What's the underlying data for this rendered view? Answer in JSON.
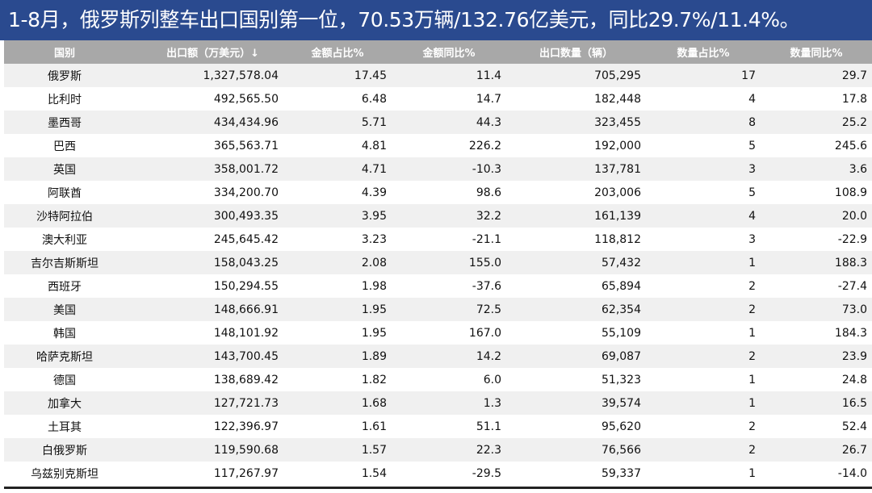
{
  "banner": {
    "title": "1-8月，俄罗斯列整车出口国别第一位，70.53万辆/132.76亿美元，同比29.7%/11.4%。",
    "color": "#2a4a8f"
  },
  "table": {
    "header_color": "#a8a8a8",
    "columns": [
      "国别",
      "出口额（万美元）↓",
      "金额占比%",
      "金额同比%",
      "出口数量（辆）",
      "数量占比%",
      "数量同比%"
    ],
    "rows": [
      [
        "俄罗斯",
        "1,327,578.04",
        "17.45",
        "11.4",
        "705,295",
        "17",
        "29.7"
      ],
      [
        "比利时",
        "492,565.50",
        "6.48",
        "14.7",
        "182,448",
        "4",
        "17.8"
      ],
      [
        "墨西哥",
        "434,434.96",
        "5.71",
        "44.3",
        "323,455",
        "8",
        "25.2"
      ],
      [
        "巴西",
        "365,563.71",
        "4.81",
        "226.2",
        "192,000",
        "5",
        "245.6"
      ],
      [
        "英国",
        "358,001.72",
        "4.71",
        "-10.3",
        "137,781",
        "3",
        "3.6"
      ],
      [
        "阿联酋",
        "334,200.70",
        "4.39",
        "98.6",
        "203,006",
        "5",
        "108.9"
      ],
      [
        "沙特阿拉伯",
        "300,493.35",
        "3.95",
        "32.2",
        "161,139",
        "4",
        "20.0"
      ],
      [
        "澳大利亚",
        "245,645.42",
        "3.23",
        "-21.1",
        "118,812",
        "3",
        "-22.9"
      ],
      [
        "吉尔吉斯斯坦",
        "158,043.25",
        "2.08",
        "155.0",
        "57,432",
        "1",
        "188.3"
      ],
      [
        "西班牙",
        "150,294.55",
        "1.98",
        "-37.6",
        "65,894",
        "2",
        "-27.4"
      ],
      [
        "美国",
        "148,666.91",
        "1.95",
        "72.5",
        "62,354",
        "2",
        "73.0"
      ],
      [
        "韩国",
        "148,101.92",
        "1.95",
        "167.0",
        "55,109",
        "1",
        "184.3"
      ],
      [
        "哈萨克斯坦",
        "143,700.45",
        "1.89",
        "14.2",
        "69,087",
        "2",
        "23.9"
      ],
      [
        "德国",
        "138,689.42",
        "1.82",
        "6.0",
        "51,323",
        "1",
        "24.8"
      ],
      [
        "加拿大",
        "127,721.73",
        "1.68",
        "1.3",
        "39,574",
        "1",
        "16.5"
      ],
      [
        "土耳其",
        "122,396.97",
        "1.61",
        "51.1",
        "95,620",
        "2",
        "52.4"
      ],
      [
        "白俄罗斯",
        "119,590.68",
        "1.57",
        "22.3",
        "76,566",
        "2",
        "26.7"
      ],
      [
        "乌兹别克斯坦",
        "117,267.97",
        "1.54",
        "-29.5",
        "59,337",
        "1",
        "-14.0"
      ]
    ]
  }
}
